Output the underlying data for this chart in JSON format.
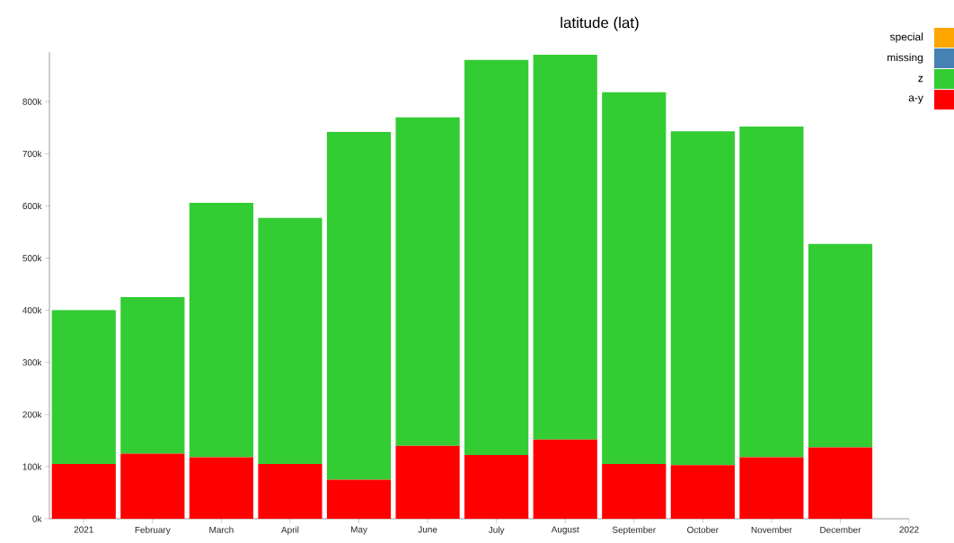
{
  "chart_data": {
    "type": "bar",
    "title": "latitude (lat)",
    "stacked": true,
    "legend": "top right",
    "categories": [
      "2021",
      "February",
      "March",
      "April",
      "May",
      "June",
      "July",
      "August",
      "September",
      "October",
      "November",
      "December",
      "2022"
    ],
    "series": [
      {
        "name": "a-y",
        "color": "#ff0000",
        "values": [
          105000,
          125000,
          118000,
          105000,
          75000,
          140000,
          122000,
          152000,
          105000,
          103000,
          118000,
          137000,
          null
        ]
      },
      {
        "name": "z",
        "color": "#33cc33",
        "values": [
          295000,
          300000,
          488000,
          472000,
          667000,
          630000,
          758000,
          738000,
          713000,
          640000,
          634000,
          390000,
          null
        ]
      },
      {
        "name": "missing",
        "color": "#4682b4",
        "values": [
          0,
          0,
          0,
          0,
          0,
          0,
          0,
          0,
          0,
          0,
          0,
          0,
          null
        ]
      },
      {
        "name": "special",
        "color": "#ffa500",
        "values": [
          0,
          0,
          0,
          0,
          0,
          0,
          0,
          0,
          0,
          0,
          0,
          0,
          null
        ]
      }
    ],
    "ylim": [
      0,
      895000
    ],
    "yticks": [
      {
        "value": 0,
        "label": "0k"
      },
      {
        "value": 100000,
        "label": "100k"
      },
      {
        "value": 200000,
        "label": "200k"
      },
      {
        "value": 300000,
        "label": "300k"
      },
      {
        "value": 400000,
        "label": "400k"
      },
      {
        "value": 500000,
        "label": "500k"
      },
      {
        "value": 600000,
        "label": "600k"
      },
      {
        "value": 700000,
        "label": "700k"
      },
      {
        "value": 800000,
        "label": "800k"
      }
    ]
  }
}
